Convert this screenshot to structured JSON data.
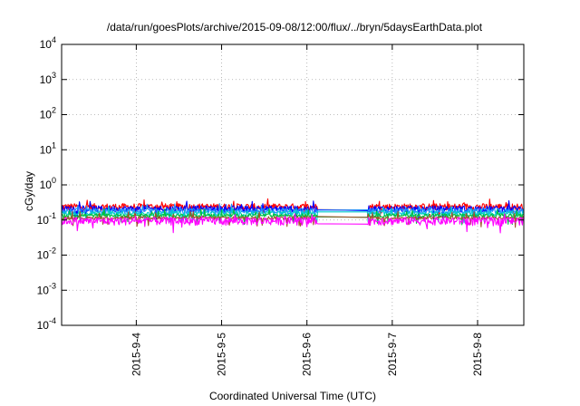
{
  "chart_data": {
    "type": "line",
    "title": "/data/run/goesPlots/archive/2015-09-08/12:00/flux/../bryn/5daysEarthData.plot",
    "xlabel": "Coordinated Universal Time (UTC)",
    "ylabel": "cGy/day",
    "yscale": "log",
    "ylim": [
      0.0001,
      10000
    ],
    "xlim": [
      "2015-09-03 03:00",
      "2015-09-08 13:00"
    ],
    "x_ticks": [
      "2015-9-4",
      "2015-9-5",
      "2015-9-6",
      "2015-9-7",
      "2015-9-8"
    ],
    "y_ticks": [
      {
        "value": 0.0001,
        "base": "10",
        "exp": "-4"
      },
      {
        "value": 0.001,
        "base": "10",
        "exp": "-3"
      },
      {
        "value": 0.01,
        "base": "10",
        "exp": "-2"
      },
      {
        "value": 0.1,
        "base": "10",
        "exp": "-1"
      },
      {
        "value": 1,
        "base": "10",
        "exp": "0"
      },
      {
        "value": 10,
        "base": "10",
        "exp": "1"
      },
      {
        "value": 100,
        "base": "10",
        "exp": "2"
      },
      {
        "value": 1000,
        "base": "10",
        "exp": "3"
      },
      {
        "value": 10000,
        "base": "10",
        "exp": "4"
      }
    ],
    "grid": true,
    "data_gap": [
      "2015-09-06 03:00",
      "2015-09-06 17:00"
    ],
    "series": [
      {
        "color": "#ff0000",
        "level": 0.24,
        "spread": 0.28
      },
      {
        "color": "#0000ff",
        "level": 0.21,
        "spread": 0.26
      },
      {
        "color": "#1e90ff",
        "level": 0.18,
        "spread": 0.22
      },
      {
        "color": "#00cdcd",
        "level": 0.155,
        "spread": 0.18
      },
      {
        "color": "#00c040",
        "level": 0.135,
        "spread": 0.15
      },
      {
        "color": "#a0522d",
        "level": 0.115,
        "spread": 0.13
      },
      {
        "color": "#ff00ff",
        "level": 0.095,
        "spread": 0.32
      }
    ]
  }
}
